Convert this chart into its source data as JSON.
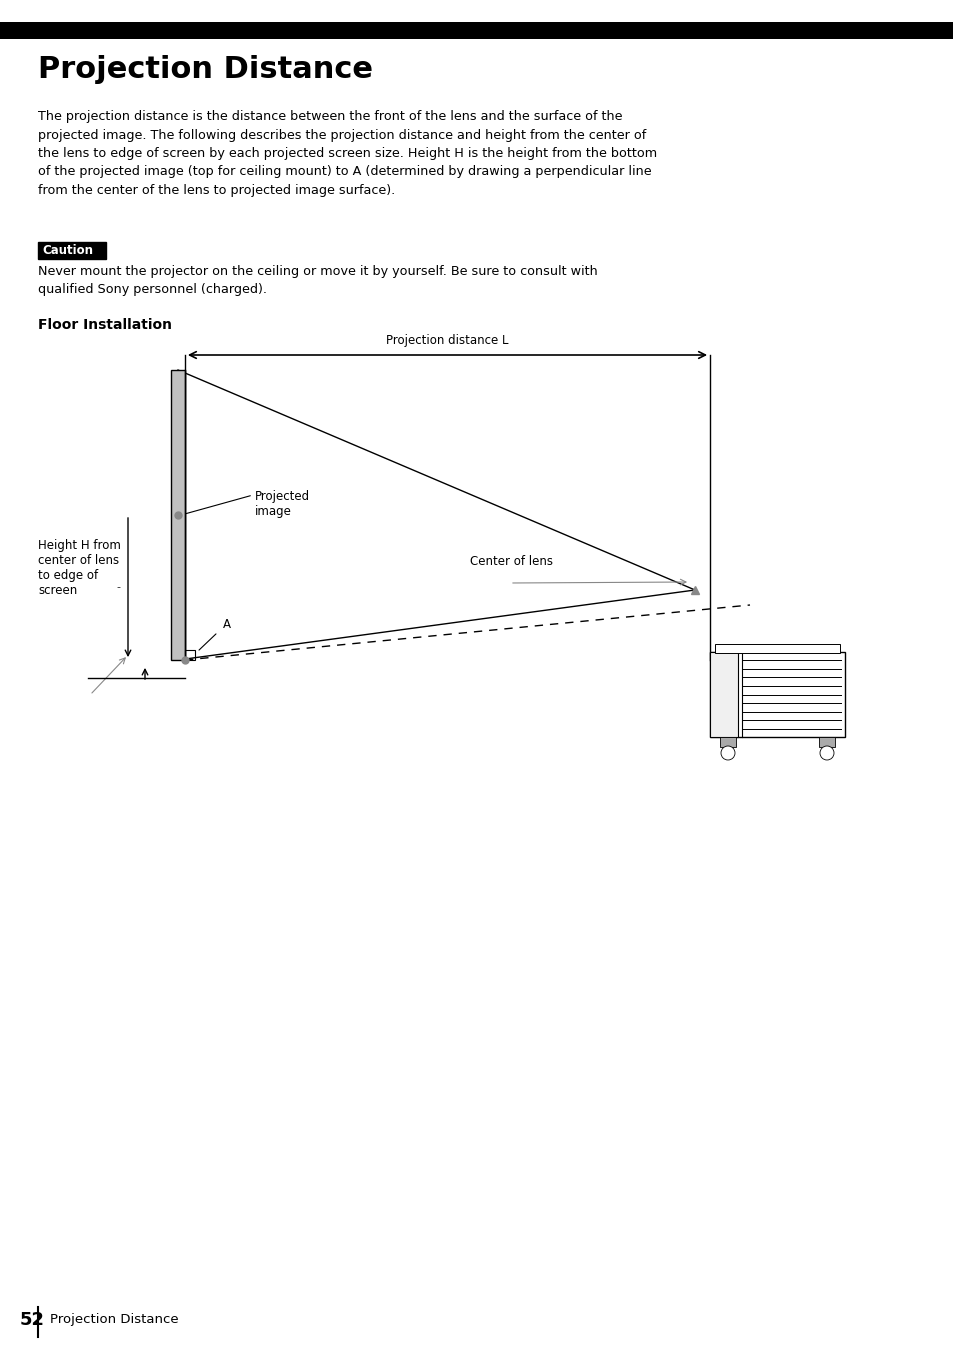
{
  "title": "Projection Distance",
  "title_fontsize": 22,
  "body_text": "The projection distance is the distance between the front of the lens and the surface of the\nprojected image. The following describes the projection distance and height from the center of\nthe lens to edge of screen by each projected screen size. Height H is the height from the bottom\nof the projected image (top for ceiling mount) to A (determined by drawing a perpendicular line\nfrom the center of the lens to projected image surface).",
  "caution_label": "Caution",
  "caution_text": "Never mount the projector on the ceiling or move it by yourself. Be sure to consult with\nqualified Sony personnel (charged).",
  "section_title": "Floor Installation",
  "page_number": "52",
  "page_footer": "Projection Distance",
  "bg_color": "#ffffff",
  "text_color": "#000000",
  "body_fontsize": 9.2,
  "caution_fontsize": 8.5,
  "caution_text_fontsize": 9.2,
  "section_fontsize": 10,
  "page_fontsize": 13,
  "footer_fontsize": 9.5,
  "diagram_label_fontsize": 8.5,
  "proj_dist_label": "Projection distance L",
  "projected_image_label": "Projected\nimage",
  "center_of_lens_label": "Center of lens",
  "A_label": "A",
  "height_H_label": "Height H from\ncenter of lens\nto edge of\nscreen"
}
